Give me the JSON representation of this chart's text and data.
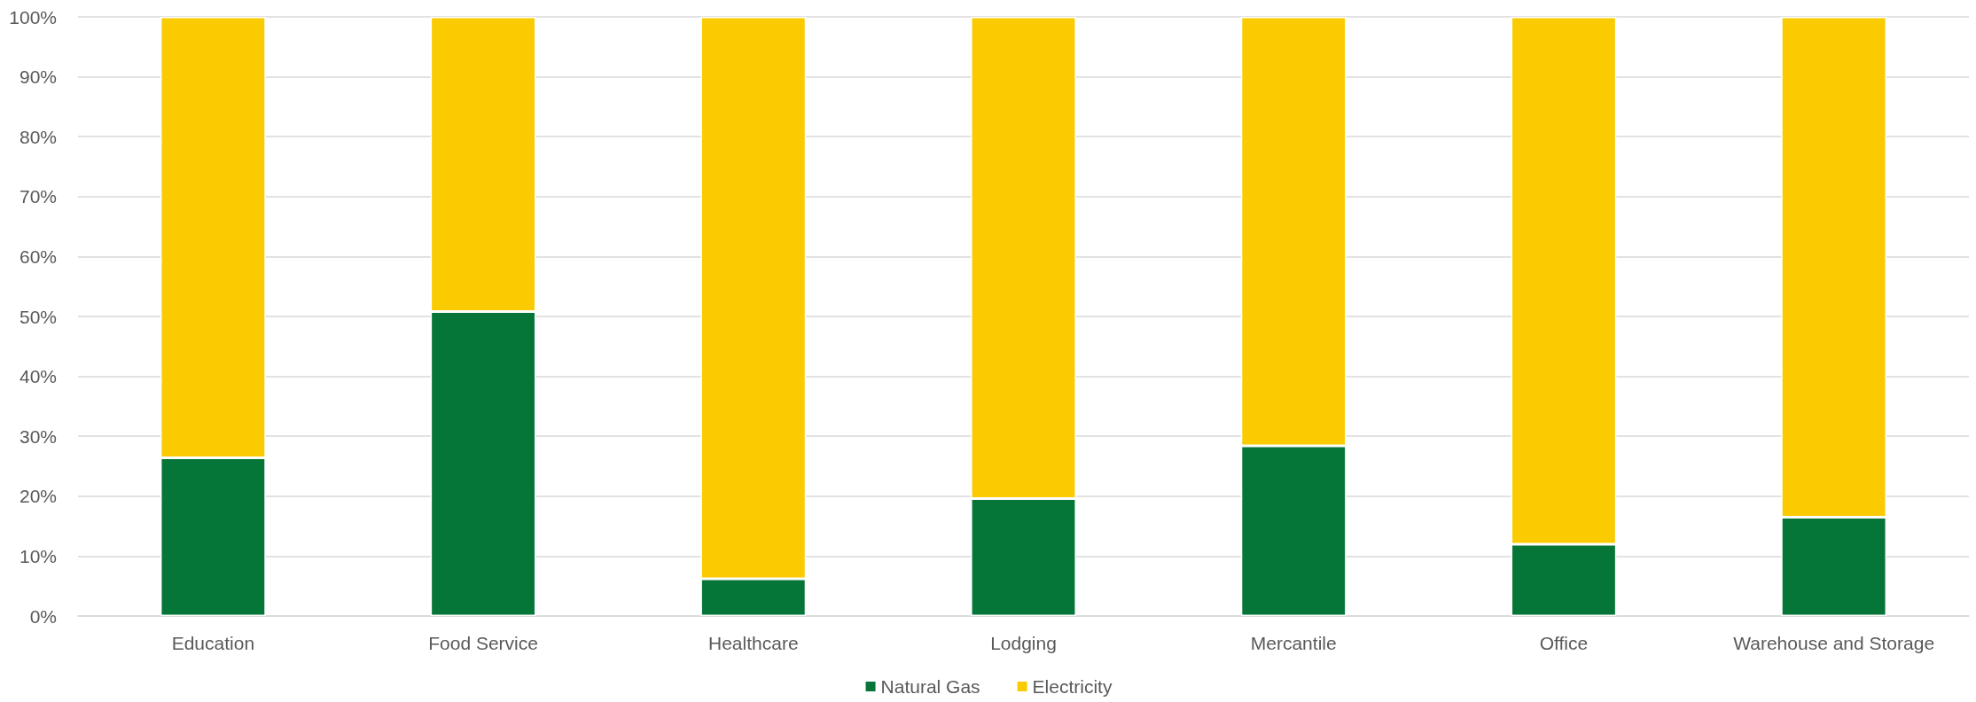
{
  "chart_data": {
    "type": "bar",
    "stacked": true,
    "categories": [
      "Education",
      "Food Service",
      "Healthcare",
      "Lodging",
      "Mercantile",
      "Office",
      "Warehouse and Storage"
    ],
    "series": [
      {
        "name": "Natural Gas",
        "color": "#057638",
        "values": [
          26.4,
          50.8,
          6.2,
          19.6,
          28.4,
          12.0,
          16.5
        ]
      },
      {
        "name": "Electricity",
        "color": "#facb00",
        "values": [
          73.6,
          49.2,
          93.8,
          80.4,
          71.6,
          88.0,
          83.5
        ]
      }
    ],
    "ylim": [
      0,
      100
    ],
    "yticks": [
      {
        "value": 0,
        "label": "0%"
      },
      {
        "value": 10,
        "label": "10%"
      },
      {
        "value": 20,
        "label": "20%"
      },
      {
        "value": 30,
        "label": "30%"
      },
      {
        "value": 40,
        "label": "40%"
      },
      {
        "value": 50,
        "label": "50%"
      },
      {
        "value": 60,
        "label": "60%"
      },
      {
        "value": 70,
        "label": "70%"
      },
      {
        "value": 80,
        "label": "80%"
      },
      {
        "value": 90,
        "label": "90%"
      },
      {
        "value": 100,
        "label": "100%"
      }
    ],
    "grid": "y",
    "legend": "bottom"
  }
}
